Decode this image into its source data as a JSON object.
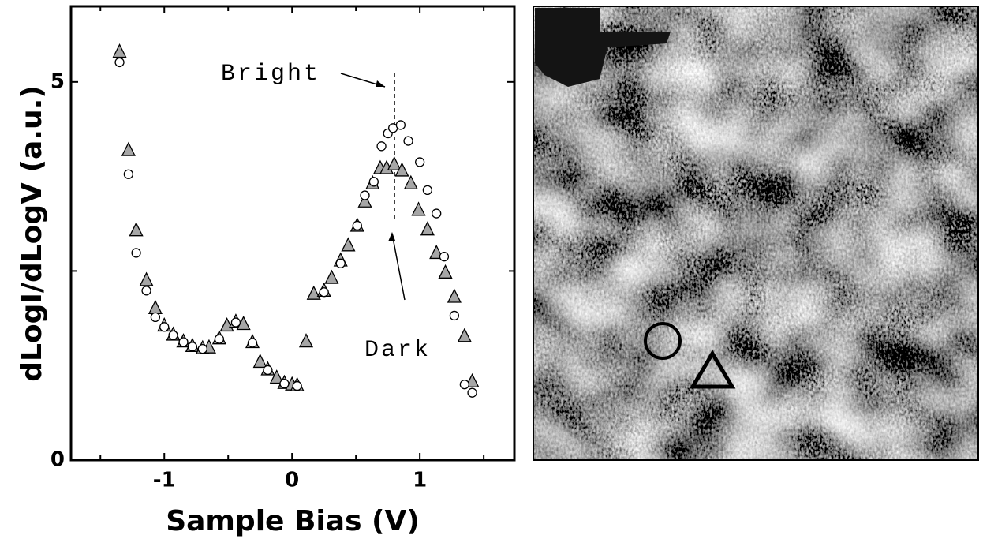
{
  "chart_data": {
    "type": "scatter",
    "xlabel": "Sample Bias (V)",
    "ylabel": "dLogI/dLogV (a.u.)",
    "xlim": [
      -1.73,
      1.74
    ],
    "xticks": [
      -1,
      0,
      1
    ],
    "xminor": [
      -1.5,
      -0.5,
      0.5,
      1.5
    ],
    "ylim": [
      0,
      6
    ],
    "yticks": [
      0,
      5
    ],
    "yminor": [
      2.5
    ],
    "annotations": [
      "Bright",
      "Dark"
    ],
    "series": [
      {
        "marker": "triangle",
        "color": "#a6a6a6",
        "x": [
          -1.35,
          -1.28,
          -1.22,
          -1.14,
          -1.07,
          -1.0,
          -0.93,
          -0.85,
          -0.78,
          -0.7,
          -0.65,
          -0.57,
          -0.51,
          -0.44,
          -0.38,
          -0.31,
          -0.25,
          -0.19,
          -0.12,
          -0.06,
          0.0,
          0.04,
          0.11,
          0.17,
          0.25,
          0.31,
          0.38,
          0.44,
          0.51,
          0.57,
          0.63,
          0.69,
          0.74,
          0.8,
          0.86,
          0.93,
          0.99,
          1.06,
          1.13,
          1.2,
          1.27,
          1.35,
          1.41
        ],
        "values": [
          5.4,
          4.1,
          3.04,
          2.38,
          2.01,
          1.78,
          1.66,
          1.57,
          1.51,
          1.48,
          1.49,
          1.61,
          1.78,
          1.83,
          1.8,
          1.56,
          1.3,
          1.2,
          1.09,
          1.02,
          1.0,
          0.99,
          1.57,
          2.2,
          2.24,
          2.41,
          2.64,
          2.84,
          3.1,
          3.42,
          3.66,
          3.86,
          3.86,
          3.91,
          3.83,
          3.66,
          3.31,
          3.05,
          2.74,
          2.48,
          2.16,
          1.64,
          1.04
        ]
      },
      {
        "marker": "circle",
        "color": "#ffffff",
        "x": [
          -1.35,
          -1.28,
          -1.22,
          -1.14,
          -1.07,
          -1.0,
          -0.93,
          -0.85,
          -0.78,
          -0.7,
          -0.57,
          -0.44,
          -0.31,
          -0.19,
          -0.06,
          0.04,
          0.25,
          0.38,
          0.51,
          0.57,
          0.64,
          0.7,
          0.75,
          0.79,
          0.85,
          0.91,
          1.0,
          1.06,
          1.13,
          1.19,
          1.27,
          1.35,
          1.41
        ],
        "values": [
          5.26,
          3.78,
          2.74,
          2.24,
          1.89,
          1.76,
          1.65,
          1.56,
          1.5,
          1.47,
          1.6,
          1.82,
          1.55,
          1.19,
          1.01,
          0.98,
          2.22,
          2.6,
          3.1,
          3.5,
          3.68,
          4.15,
          4.32,
          4.39,
          4.43,
          4.22,
          3.94,
          3.57,
          3.26,
          2.69,
          1.91,
          1.0,
          0.89
        ]
      }
    ]
  }
}
